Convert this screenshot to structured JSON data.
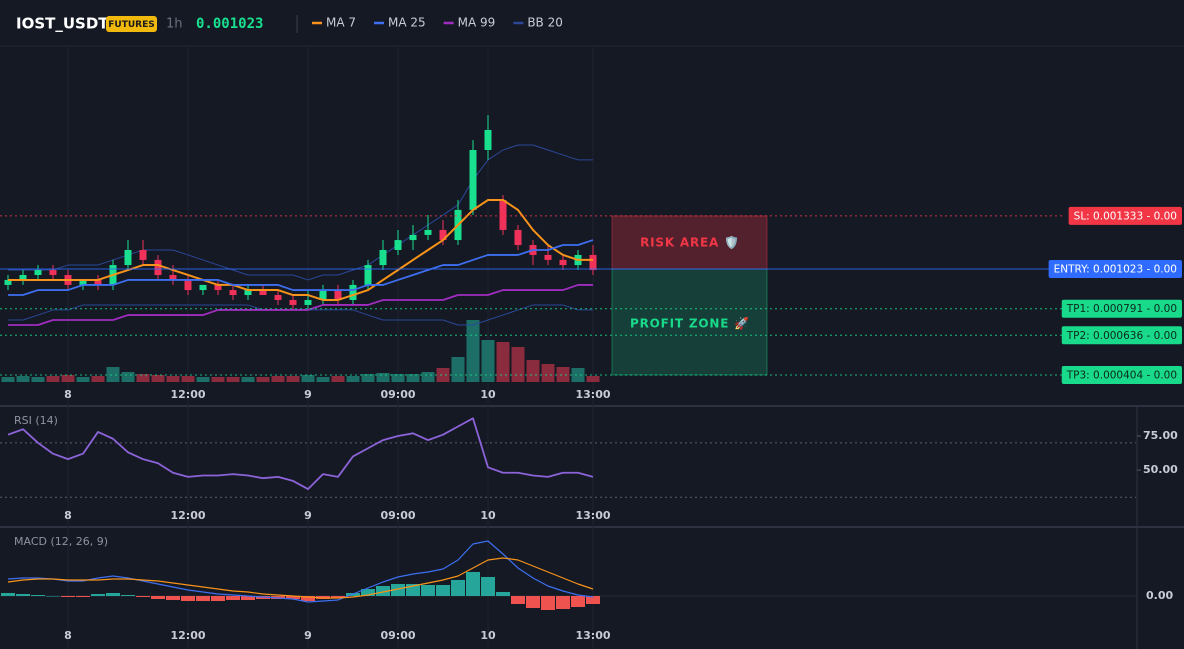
{
  "header": {
    "symbol": "IOST_USDT",
    "badge": "FUTURES",
    "interval": "1h",
    "price": "0.001023"
  },
  "chart_data": [
    {
      "type": "candlestick",
      "categories": [
        null,
        null,
        null,
        null,
        "8",
        null,
        null,
        null,
        null,
        null,
        null,
        null,
        "12:00",
        null,
        null,
        null,
        null,
        null,
        null,
        null,
        "9",
        null,
        null,
        null,
        null,
        null,
        "09:00",
        null,
        null,
        null,
        null,
        null,
        "10",
        null,
        null,
        null,
        null,
        null,
        null,
        "13:00"
      ],
      "open": [
        0.00093,
        0.000959,
        0.000988,
        0.001017,
        0.000988,
        0.00093,
        0.000959,
        0.00093,
        0.001046,
        0.001134,
        0.001076,
        0.000988,
        0.000959,
        0.0009,
        0.00093,
        0.0009,
        0.000871,
        0.0009,
        0.000871,
        0.000842,
        0.000813,
        0.000842,
        0.0009,
        0.000842,
        0.00093,
        0.001046,
        0.001134,
        0.001192,
        0.001222,
        0.001251,
        0.001192,
        0.001368,
        0.001718,
        0.001426,
        0.001251,
        0.001163,
        0.001105,
        0.001076,
        0.001046,
        0.001105
      ],
      "high": [
        0.000988,
        0.001017,
        0.001046,
        0.001046,
        0.001017,
        0.000959,
        0.000988,
        0.001076,
        0.001192,
        0.001192,
        0.001105,
        0.001046,
        0.000988,
        0.00093,
        0.000959,
        0.00093,
        0.00093,
        0.00093,
        0.0009,
        0.000871,
        0.0009,
        0.00093,
        0.00093,
        0.000959,
        0.001076,
        0.001192,
        0.001251,
        0.00128,
        0.001338,
        0.001309,
        0.001426,
        0.001776,
        0.001922,
        0.001455,
        0.00128,
        0.001192,
        0.001163,
        0.001105,
        0.001134,
        0.001163
      ],
      "low": [
        0.0009,
        0.00093,
        0.000959,
        0.000959,
        0.0009,
        0.0009,
        0.0009,
        0.0009,
        0.001017,
        0.001046,
        0.000959,
        0.00093,
        0.000871,
        0.000871,
        0.000871,
        0.000842,
        0.000842,
        0.000871,
        0.000813,
        0.000784,
        0.000784,
        0.000813,
        0.000813,
        0.000813,
        0.0009,
        0.001017,
        0.001105,
        0.001134,
        0.001192,
        0.001163,
        0.001163,
        0.001338,
        0.00166,
        0.001222,
        0.001134,
        0.001046,
        0.001046,
        0.001017,
        0.001017,
        0.000988
      ],
      "close": [
        0.000959,
        0.000988,
        0.001017,
        0.000988,
        0.00093,
        0.000959,
        0.00093,
        0.001046,
        0.001134,
        0.001076,
        0.000988,
        0.000959,
        0.0009,
        0.00093,
        0.0009,
        0.000871,
        0.0009,
        0.000871,
        0.000842,
        0.000813,
        0.000842,
        0.0009,
        0.000842,
        0.00093,
        0.001046,
        0.001134,
        0.001192,
        0.001222,
        0.001251,
        0.001192,
        0.001368,
        0.001718,
        0.001835,
        0.001251,
        0.001163,
        0.001105,
        0.001076,
        0.001046,
        0.001105,
        0.001017
      ],
      "up_color": "#19e08f",
      "down_color": "#f0325a",
      "volume": [
        5,
        6,
        5,
        6,
        7,
        5,
        6,
        15,
        10,
        8,
        7,
        6,
        6,
        5,
        5,
        5,
        5,
        5,
        6,
        6,
        7,
        5,
        6,
        6,
        8,
        9,
        8,
        8,
        10,
        14,
        25,
        62,
        42,
        40,
        35,
        22,
        18,
        15,
        14,
        6
      ],
      "volume_ylim": [
        0,
        100
      ],
      "volume_up_color": "#1d6e66",
      "volume_down_color": "#8a2c3e",
      "ylim": [
        0.000363,
        0.002302
      ],
      "series": [
        {
          "name": "MA 7",
          "color": "#f7931a",
          "values": [
            0.000959,
            0.000959,
            0.000959,
            0.000959,
            0.000959,
            0.000959,
            0.000959,
            0.000988,
            0.001017,
            0.001046,
            0.001046,
            0.001017,
            0.000988,
            0.000959,
            0.00093,
            0.00093,
            0.0009,
            0.0009,
            0.0009,
            0.000871,
            0.000871,
            0.000842,
            0.000842,
            0.000871,
            0.0009,
            0.000959,
            0.001017,
            0.001076,
            0.001134,
            0.001192,
            0.00128,
            0.001368,
            0.001426,
            0.001426,
            0.001368,
            0.001251,
            0.001163,
            0.001105,
            0.001076,
            0.001076
          ]
        },
        {
          "name": "MA 25",
          "color": "#3d6ff0",
          "values": [
            0.000871,
            0.000871,
            0.0009,
            0.0009,
            0.0009,
            0.00093,
            0.00093,
            0.00093,
            0.000959,
            0.000959,
            0.000959,
            0.000959,
            0.000959,
            0.000959,
            0.000959,
            0.00093,
            0.00093,
            0.00093,
            0.00093,
            0.0009,
            0.0009,
            0.0009,
            0.0009,
            0.0009,
            0.00093,
            0.00093,
            0.000959,
            0.000988,
            0.001017,
            0.001046,
            0.001046,
            0.001076,
            0.001105,
            0.001105,
            0.001105,
            0.001134,
            0.001134,
            0.001163,
            0.001163,
            0.001192
          ]
        },
        {
          "name": "MA 99",
          "color": "#a02cc0",
          "values": [
            0.000696,
            0.000696,
            0.000696,
            0.000725,
            0.000725,
            0.000725,
            0.000725,
            0.000725,
            0.000754,
            0.000754,
            0.000754,
            0.000754,
            0.000754,
            0.000754,
            0.000784,
            0.000784,
            0.000784,
            0.000784,
            0.000784,
            0.000784,
            0.000784,
            0.000813,
            0.000813,
            0.000813,
            0.000813,
            0.000842,
            0.000842,
            0.000842,
            0.000842,
            0.000842,
            0.000871,
            0.000871,
            0.000871,
            0.0009,
            0.0009,
            0.0009,
            0.0009,
            0.0009,
            0.00093,
            0.00093
          ]
        },
        {
          "name": "BB 20",
          "color": "#2b4899",
          "upper": [
            0.001017,
            0.001017,
            0.001017,
            0.001017,
            0.001046,
            0.001046,
            0.001046,
            0.001076,
            0.001105,
            0.001134,
            0.001134,
            0.001134,
            0.001105,
            0.001076,
            0.001046,
            0.001017,
            0.000988,
            0.000988,
            0.000988,
            0.000988,
            0.000959,
            0.000988,
            0.000988,
            0.001017,
            0.001046,
            0.001105,
            0.001163,
            0.001222,
            0.00128,
            0.001338,
            0.001397,
            0.001543,
            0.00166,
            0.001718,
            0.001747,
            0.001747,
            0.001718,
            0.001689,
            0.00166,
            0.00166
          ],
          "lower": [
            0.000725,
            0.000725,
            0.000754,
            0.000784,
            0.000784,
            0.000813,
            0.000813,
            0.000813,
            0.000813,
            0.000813,
            0.000813,
            0.000813,
            0.000813,
            0.000813,
            0.000813,
            0.000813,
            0.000813,
            0.000784,
            0.000784,
            0.000784,
            0.000784,
            0.000784,
            0.000784,
            0.000784,
            0.000754,
            0.000725,
            0.000725,
            0.000725,
            0.000725,
            0.000725,
            0.000696,
            0.000696,
            0.000725,
            0.000754,
            0.000784,
            0.000813,
            0.000813,
            0.000813,
            0.000784,
            0.000784
          ]
        }
      ],
      "levels": [
        {
          "label": "SL: 0.001333 - 0.00",
          "value": 0.001333,
          "color": "#f23645",
          "text_color": "#ffffff",
          "dashed": true
        },
        {
          "label": "ENTRY: 0.001023 - 0.00",
          "value": 0.001023,
          "color": "#2f6bff",
          "text_color": "#ffffff",
          "dashed": false
        },
        {
          "label": "TP1: 0.000791 - 0.00",
          "value": 0.000791,
          "color": "#19d98a",
          "text_color": "#0b2a1c",
          "dashed": true
        },
        {
          "label": "TP2: 0.000636 - 0.00",
          "value": 0.000636,
          "color": "#19d98a",
          "text_color": "#0b2a1c",
          "dashed": true
        },
        {
          "label": "TP3: 0.000404 - 0.00",
          "value": 0.000404,
          "color": "#19d98a",
          "text_color": "#0b2a1c",
          "dashed": true
        }
      ],
      "zones": [
        {
          "label": "RISK AREA 🛡️",
          "color": "#f23645"
        },
        {
          "label": "PROFIT ZONE 🚀",
          "color": "#19d98a"
        }
      ]
    },
    {
      "type": "line",
      "title": "RSI (14)",
      "color": "#8c63d9",
      "values": [
        76,
        80,
        70,
        62,
        58,
        62,
        78,
        73,
        63,
        58,
        55,
        48,
        45,
        46,
        46,
        47,
        46,
        44,
        45,
        42,
        36,
        47,
        45,
        60,
        66,
        72,
        75,
        77,
        72,
        76,
        82,
        88,
        52,
        48,
        48,
        46,
        45,
        48,
        48,
        45
      ],
      "ylim": [
        9.6,
        95.6
      ],
      "yticks": [
        {
          "value": 50,
          "label": "50.00"
        },
        {
          "value": 75,
          "label": "75.00"
        }
      ],
      "levels": [
        70,
        30
      ]
    },
    {
      "type": "macd",
      "title": "MACD (12, 26, 9)",
      "ylim": [
        -5.2e-05,
        6.8e-05
      ],
      "yticks": [
        {
          "value": 0,
          "label": "0.00"
        }
      ],
      "lines": [
        {
          "color": "#3d6ff0",
          "values": [
            1.7e-05,
            1.8e-05,
            1.8e-05,
            1.7e-05,
            1.5e-05,
            1.5e-05,
            1.8e-05,
            2e-05,
            1.8e-05,
            1.5e-05,
            1.2e-05,
            9e-06,
            6e-06,
            4e-06,
            2e-06,
            1e-06,
            0,
            -1e-06,
            -2e-06,
            -3e-06,
            -6e-06,
            -5e-06,
            -4e-06,
            2e-06,
            8e-06,
            1.4e-05,
            1.9e-05,
            2.2e-05,
            2.4e-05,
            2.7e-05,
            3.6e-05,
            5.2e-05,
            5.5e-05,
            4.2e-05,
            2.8e-05,
            1.8e-05,
            1e-05,
            5e-06,
            1e-06,
            -1e-06
          ]
        },
        {
          "color": "#f7931a",
          "values": [
            1.4e-05,
            1.6e-05,
            1.7e-05,
            1.7e-05,
            1.6e-05,
            1.6e-05,
            1.6e-05,
            1.7e-05,
            1.7e-05,
            1.6e-05,
            1.5e-05,
            1.3e-05,
            1.1e-05,
            9e-06,
            7e-06,
            5e-06,
            4e-06,
            2e-06,
            1e-06,
            0,
            -1e-06,
            -2e-06,
            -2e-06,
            -1e-06,
            1e-06,
            4e-06,
            7e-06,
            1e-05,
            1.3e-05,
            1.6e-05,
            2e-05,
            2.8e-05,
            3.6e-05,
            3.8e-05,
            3.6e-05,
            3e-05,
            2.4e-05,
            1.8e-05,
            1.2e-05,
            7e-06
          ]
        }
      ],
      "histogram": {
        "up_color": "#26a69a",
        "down_color": "#ef5350",
        "values": [
          3e-06,
          2e-06,
          1e-06,
          0,
          -1e-06,
          -1e-06,
          2e-06,
          3e-06,
          1e-06,
          -1e-06,
          -3e-06,
          -4e-06,
          -5e-06,
          -5e-06,
          -5e-06,
          -4e-06,
          -4e-06,
          -3e-06,
          -3e-06,
          -3e-06,
          -5e-06,
          -3e-06,
          -2e-06,
          3e-06,
          7e-06,
          1e-05,
          1.2e-05,
          1.2e-05,
          1.1e-05,
          1.1e-05,
          1.6e-05,
          2.4e-05,
          1.9e-05,
          4e-06,
          -8e-06,
          -1.2e-05,
          -1.4e-05,
          -1.3e-05,
          -1.1e-05,
          -8e-06
        ]
      }
    }
  ]
}
